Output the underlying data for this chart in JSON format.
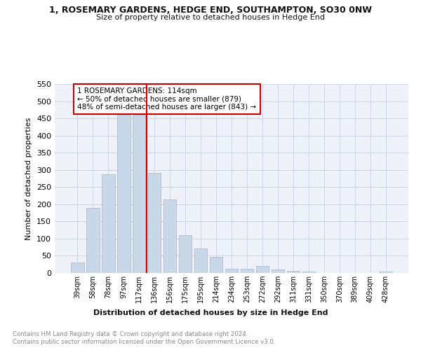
{
  "title": "1, ROSEMARY GARDENS, HEDGE END, SOUTHAMPTON, SO30 0NW",
  "subtitle": "Size of property relative to detached houses in Hedge End",
  "xlabel": "Distribution of detached houses by size in Hedge End",
  "ylabel": "Number of detached properties",
  "categories": [
    "39sqm",
    "58sqm",
    "78sqm",
    "97sqm",
    "117sqm",
    "136sqm",
    "156sqm",
    "175sqm",
    "195sqm",
    "214sqm",
    "234sqm",
    "253sqm",
    "272sqm",
    "292sqm",
    "311sqm",
    "331sqm",
    "350sqm",
    "370sqm",
    "389sqm",
    "409sqm",
    "428sqm"
  ],
  "values": [
    30,
    190,
    287,
    460,
    460,
    292,
    213,
    110,
    72,
    46,
    13,
    13,
    20,
    10,
    6,
    5,
    0,
    0,
    0,
    0,
    5
  ],
  "bar_color": "#c8d8e8",
  "bar_edge_color": "#a0b8d0",
  "vline_x_index": 4,
  "vline_color": "#cc0000",
  "annotation_text": "1 ROSEMARY GARDENS: 114sqm\n← 50% of detached houses are smaller (879)\n48% of semi-detached houses are larger (843) →",
  "annotation_box_color": "#ffffff",
  "annotation_box_edge_color": "#cc0000",
  "grid_color": "#d0d8e8",
  "background_color": "#eef2f8",
  "footer_line1": "Contains HM Land Registry data © Crown copyright and database right 2024.",
  "footer_line2": "Contains public sector information licensed under the Open Government Licence v3.0.",
  "ylim": [
    0,
    550
  ],
  "yticks": [
    0,
    50,
    100,
    150,
    200,
    250,
    300,
    350,
    400,
    450,
    500,
    550
  ]
}
